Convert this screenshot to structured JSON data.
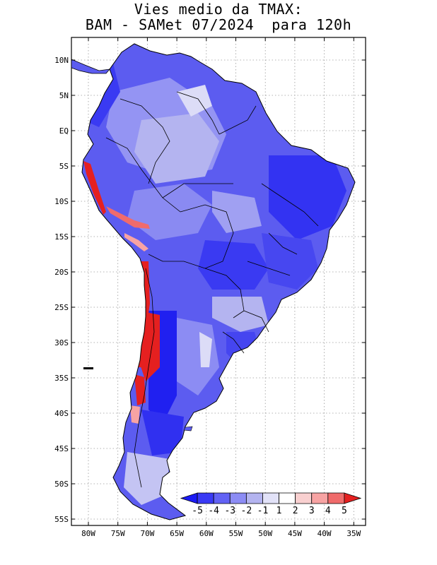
{
  "title": {
    "line1": "Vies medio da TMAX:",
    "line2": "BAM - SAMet 07/2024  para 120h"
  },
  "map": {
    "variable": "TMAX bias",
    "region": "South America",
    "lat_ticks": [
      {
        "lat": 10,
        "label": "10N"
      },
      {
        "lat": 5,
        "label": "5N"
      },
      {
        "lat": 0,
        "label": "EQ"
      },
      {
        "lat": -5,
        "label": "5S"
      },
      {
        "lat": -10,
        "label": "10S"
      },
      {
        "lat": -15,
        "label": "15S"
      },
      {
        "lat": -20,
        "label": "20S"
      },
      {
        "lat": -25,
        "label": "25S"
      },
      {
        "lat": -30,
        "label": "30S"
      },
      {
        "lat": -35,
        "label": "35S"
      },
      {
        "lat": -40,
        "label": "40S"
      },
      {
        "lat": -45,
        "label": "45S"
      },
      {
        "lat": -50,
        "label": "50S"
      },
      {
        "lat": -55,
        "label": "55S"
      }
    ],
    "lon_ticks": [
      {
        "lon": -80,
        "label": "80W"
      },
      {
        "lon": -75,
        "label": "75W"
      },
      {
        "lon": -70,
        "label": "70W"
      },
      {
        "lon": -65,
        "label": "65W"
      },
      {
        "lon": -60,
        "label": "60W"
      },
      {
        "lon": -55,
        "label": "55W"
      },
      {
        "lon": -50,
        "label": "50W"
      },
      {
        "lon": -45,
        "label": "45W"
      },
      {
        "lon": -40,
        "label": "40W"
      },
      {
        "lon": -35,
        "label": "35W"
      }
    ]
  },
  "colorbar": {
    "labels": [
      "-5",
      "-4",
      "-3",
      "-2",
      "-1",
      "1",
      "2",
      "3",
      "4",
      "5"
    ],
    "colors": [
      "#1b1bf5",
      "#3a3af5",
      "#6262f5",
      "#8c8cf5",
      "#b4b4f0",
      "#e2e2f8",
      "#ffffff",
      "#f9d0d0",
      "#f7a3a3",
      "#f06b6b",
      "#e52020"
    ]
  },
  "colors": {
    "land_base": "#5c5cf0",
    "light_blue": "#b4b4f0",
    "pale_blue": "#dcdcf7",
    "deep_blue": "#2424f0",
    "mid_blue": "#7878f0",
    "warm_red": "#e52020",
    "light_red": "#f7a3a3"
  }
}
